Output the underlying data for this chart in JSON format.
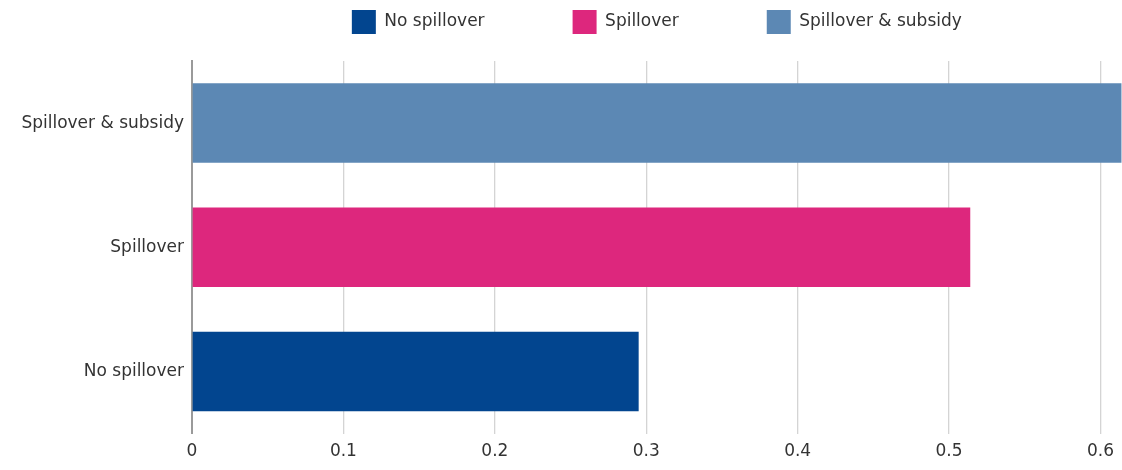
{
  "chart_data": {
    "type": "bar",
    "orientation": "horizontal",
    "categories": [
      "Spillover & subsidy",
      "Spillover",
      "No spillover"
    ],
    "series": [
      {
        "name": "No spillover",
        "color": "#02458f",
        "values": [
          null,
          null,
          0.295
        ]
      },
      {
        "name": "Spillover",
        "color": "#dd277d",
        "values": [
          null,
          0.514,
          null
        ]
      },
      {
        "name": "Spillover & subsidy",
        "color": "#5c88b4",
        "values": [
          0.614,
          null,
          null
        ]
      }
    ],
    "xlim": [
      0,
      0.614
    ],
    "xticks": [
      0,
      0.1,
      0.2,
      0.3,
      0.4,
      0.5,
      0.6
    ],
    "grid": "x",
    "legend": "top"
  }
}
